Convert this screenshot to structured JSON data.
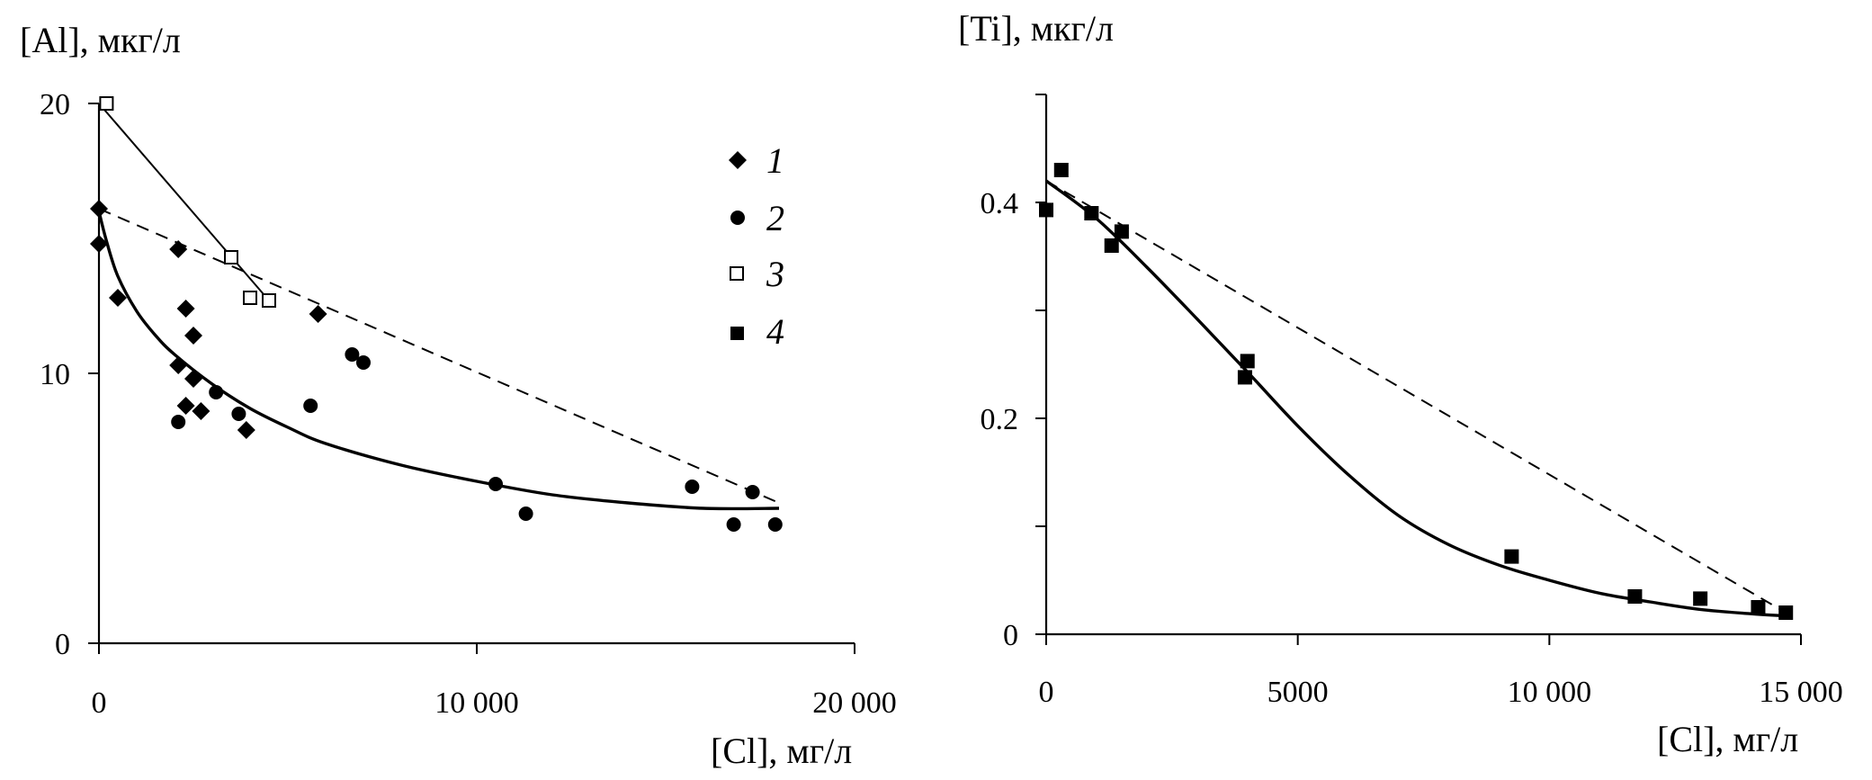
{
  "chart_data": [
    {
      "type": "scatter",
      "ylabel": "[Al], мкг/л",
      "xlabel": "[Cl], мг/л",
      "xlim": [
        0,
        20000
      ],
      "ylim": [
        0,
        20
      ],
      "xticks": [
        0,
        10000,
        20000
      ],
      "xtick_labels": [
        "0",
        "10 000",
        "20 000"
      ],
      "yticks": [
        0,
        10,
        20
      ],
      "ytick_labels": [
        "0",
        "10",
        "20"
      ],
      "grid": false,
      "legend": {
        "position": "top-right",
        "entries": [
          "1",
          "2",
          "3",
          "4"
        ]
      },
      "series": [
        {
          "name": "1",
          "marker": "diamond-filled",
          "points": [
            [
              0,
              16.1
            ],
            [
              0,
              14.8
            ],
            [
              500,
              12.8
            ],
            [
              2100,
              14.6
            ],
            [
              2300,
              12.4
            ],
            [
              2500,
              11.4
            ],
            [
              2100,
              10.3
            ],
            [
              2500,
              9.8
            ],
            [
              2300,
              8.8
            ],
            [
              2700,
              8.6
            ],
            [
              3900,
              7.9
            ],
            [
              5800,
              12.2
            ]
          ]
        },
        {
          "name": "2",
          "marker": "circle-filled",
          "points": [
            [
              2100,
              8.2
            ],
            [
              3100,
              9.3
            ],
            [
              3700,
              8.5
            ],
            [
              5600,
              8.8
            ],
            [
              6700,
              10.7
            ],
            [
              7000,
              10.4
            ],
            [
              10500,
              5.9
            ],
            [
              11300,
              4.8
            ],
            [
              15700,
              5.8
            ],
            [
              16800,
              4.4
            ],
            [
              17300,
              5.6
            ],
            [
              17900,
              4.4
            ]
          ]
        },
        {
          "name": "3",
          "marker": "square-open",
          "points": [
            [
              200,
              20.0
            ],
            [
              3500,
              14.3
            ],
            [
              4000,
              12.8
            ],
            [
              4500,
              12.7
            ]
          ]
        }
      ],
      "lines": [
        {
          "style": "solid",
          "kind": "fit",
          "points": [
            [
              0,
              16.0
            ],
            [
              200,
              14.9
            ],
            [
              500,
              13.6
            ],
            [
              1000,
              12.3
            ],
            [
              1500,
              11.4
            ],
            [
              2000,
              10.7
            ],
            [
              3000,
              9.6
            ],
            [
              4000,
              8.7
            ],
            [
              5000,
              8.0
            ],
            [
              6000,
              7.4
            ],
            [
              8000,
              6.6
            ],
            [
              10000,
              6.0
            ],
            [
              12000,
              5.5
            ],
            [
              14000,
              5.2
            ],
            [
              16000,
              5.0
            ],
            [
              18000,
              5.0
            ]
          ]
        },
        {
          "style": "dashed",
          "kind": "linear",
          "points": [
            [
              0,
              16.1
            ],
            [
              18000,
              5.2
            ]
          ]
        },
        {
          "style": "solid-thin",
          "kind": "linear",
          "points": [
            [
              0,
              20.0
            ],
            [
              4500,
              12.7
            ]
          ]
        }
      ]
    },
    {
      "type": "scatter",
      "ylabel": "[Ti], мкг/л",
      "xlabel": "[Cl], мг/л",
      "xlim": [
        0,
        15000
      ],
      "ylim": [
        0,
        0.5
      ],
      "xticks": [
        0,
        5000,
        10000,
        15000
      ],
      "xtick_labels": [
        "0",
        "5000",
        "10 000",
        "15 000"
      ],
      "yticks": [
        0,
        0.1,
        0.2,
        0.3,
        0.4,
        0.5
      ],
      "ytick_labels": [
        "0",
        "",
        "0.2",
        "",
        "0.4",
        ""
      ],
      "grid": false,
      "series": [
        {
          "name": "4",
          "marker": "square-filled",
          "points": [
            [
              0,
              0.393
            ],
            [
              300,
              0.43
            ],
            [
              900,
              0.39
            ],
            [
              1300,
              0.36
            ],
            [
              1500,
              0.373
            ],
            [
              3950,
              0.238
            ],
            [
              4000,
              0.253
            ],
            [
              9250,
              0.072
            ],
            [
              11700,
              0.035
            ],
            [
              13000,
              0.033
            ],
            [
              14150,
              0.025
            ],
            [
              14700,
              0.02
            ]
          ]
        }
      ],
      "lines": [
        {
          "style": "solid",
          "kind": "fit",
          "points": [
            [
              0,
              0.42
            ],
            [
              1000,
              0.385
            ],
            [
              2000,
              0.34
            ],
            [
              3000,
              0.292
            ],
            [
              4000,
              0.243
            ],
            [
              5000,
              0.193
            ],
            [
              6000,
              0.148
            ],
            [
              7000,
              0.11
            ],
            [
              8000,
              0.083
            ],
            [
              9000,
              0.064
            ],
            [
              10000,
              0.05
            ],
            [
              11000,
              0.038
            ],
            [
              12000,
              0.03
            ],
            [
              13000,
              0.023
            ],
            [
              14000,
              0.019
            ],
            [
              14700,
              0.017
            ]
          ]
        },
        {
          "style": "dashed",
          "kind": "linear",
          "points": [
            [
              0,
              0.42
            ],
            [
              14700,
              0.02
            ]
          ]
        }
      ]
    }
  ]
}
